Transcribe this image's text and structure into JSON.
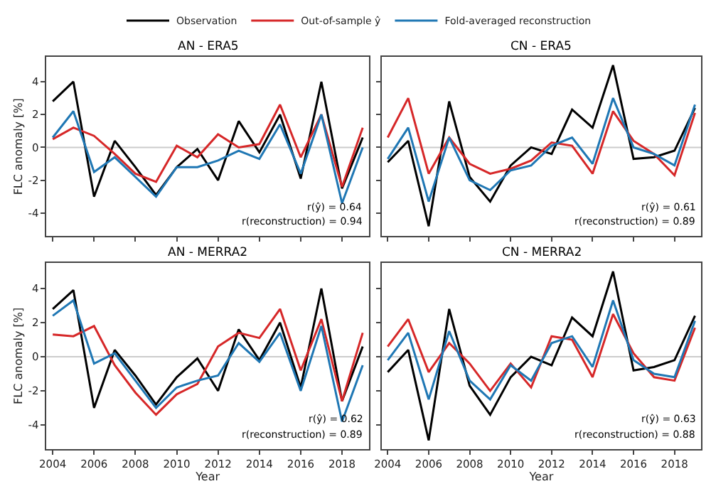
{
  "chart_data": [
    {
      "type": "line",
      "title": "AN - ERA5",
      "ylabel": "FLC anomaly [%]",
      "legend": "top",
      "tick_labels": "y",
      "x": [
        2004,
        2005,
        2006,
        2007,
        2008,
        2009,
        2010,
        2011,
        2012,
        2013,
        2014,
        2015,
        2016,
        2017,
        2018,
        2019
      ],
      "xlim": [
        2003.7,
        2019.3
      ],
      "ylim": [
        -5.4,
        5.5
      ],
      "xticks": [
        2004,
        2006,
        2008,
        2010,
        2012,
        2014,
        2016,
        2018
      ],
      "yticks": [
        -4,
        -2,
        0,
        2,
        4
      ],
      "ref_lines": [
        {
          "axis": "y",
          "value": 0,
          "color": "#cccccc"
        }
      ],
      "annotations": [
        "r(ŷ) = 0.64",
        "r(reconstruction) = 0.94"
      ],
      "series": [
        {
          "name": "Observation",
          "color": "#000000",
          "values": [
            2.8,
            4.0,
            -3.0,
            0.4,
            -1.2,
            -2.9,
            -1.2,
            -0.1,
            -2.0,
            1.6,
            -0.3,
            2.0,
            -1.9,
            4.0,
            -2.5,
            0.6
          ]
        },
        {
          "name": "Out-of-sample ŷ",
          "color": "#d62728",
          "values": [
            0.5,
            1.2,
            0.7,
            -0.4,
            -1.6,
            -2.1,
            0.1,
            -0.6,
            0.8,
            0.0,
            0.2,
            2.6,
            -0.6,
            2.0,
            -2.4,
            1.2
          ]
        },
        {
          "name": "Fold-averaged reconstruction",
          "color": "#1f77b4",
          "values": [
            0.6,
            2.2,
            -1.5,
            -0.6,
            -1.8,
            -3.0,
            -1.2,
            -1.2,
            -0.8,
            -0.2,
            -0.7,
            1.4,
            -1.6,
            2.0,
            -3.4,
            0.0
          ]
        }
      ]
    },
    {
      "type": "line",
      "title": "CN - ERA5",
      "tick_labels": false,
      "x": [
        2004,
        2005,
        2006,
        2007,
        2008,
        2009,
        2010,
        2011,
        2012,
        2013,
        2014,
        2015,
        2016,
        2017,
        2018,
        2019
      ],
      "xlim": [
        2003.7,
        2019.3
      ],
      "ylim": [
        -5.4,
        5.5
      ],
      "xticks": [
        2004,
        2006,
        2008,
        2010,
        2012,
        2014,
        2016,
        2018
      ],
      "yticks": [
        -4,
        -2,
        0,
        2,
        4
      ],
      "ref_lines": [
        {
          "axis": "y",
          "value": 0,
          "color": "#cccccc"
        }
      ],
      "annotations": [
        "r(ŷ) = 0.61",
        "r(reconstruction) = 0.89"
      ],
      "series": [
        {
          "color": "#000000",
          "values": [
            -0.9,
            0.4,
            -4.8,
            2.8,
            -1.8,
            -3.3,
            -1.1,
            0.0,
            -0.4,
            2.3,
            1.2,
            5.0,
            -0.7,
            -0.6,
            -0.2,
            2.4
          ]
        },
        {
          "color": "#d62728",
          "values": [
            0.6,
            3.0,
            -1.6,
            0.6,
            -1.0,
            -1.6,
            -1.3,
            -0.8,
            0.3,
            0.1,
            -1.6,
            2.2,
            0.4,
            -0.4,
            -1.7,
            2.1
          ]
        },
        {
          "color": "#1f77b4",
          "values": [
            -0.7,
            1.2,
            -3.3,
            0.6,
            -2.0,
            -2.6,
            -1.4,
            -1.1,
            0.1,
            0.6,
            -1.0,
            3.0,
            0.0,
            -0.4,
            -1.1,
            2.6
          ]
        }
      ]
    },
    {
      "type": "line",
      "title": "AN - MERRA2",
      "ylabel": "FLC anomaly [%]",
      "xlabel": "Year",
      "x": [
        2004,
        2005,
        2006,
        2007,
        2008,
        2009,
        2010,
        2011,
        2012,
        2013,
        2014,
        2015,
        2016,
        2017,
        2018,
        2019
      ],
      "xlim": [
        2003.7,
        2019.3
      ],
      "ylim": [
        -5.4,
        5.5
      ],
      "xticks": [
        2004,
        2006,
        2008,
        2010,
        2012,
        2014,
        2016,
        2018
      ],
      "yticks": [
        -4,
        -2,
        0,
        2,
        4
      ],
      "ref_lines": [
        {
          "axis": "y",
          "value": 0,
          "color": "#cccccc"
        }
      ],
      "annotations": [
        "r(ŷ) = 0.62",
        "r(reconstruction) = 0.89"
      ],
      "series": [
        {
          "color": "#000000",
          "values": [
            2.8,
            3.9,
            -3.0,
            0.4,
            -1.1,
            -2.8,
            -1.2,
            -0.1,
            -2.0,
            1.6,
            -0.2,
            2.0,
            -1.8,
            4.0,
            -2.6,
            0.6
          ]
        },
        {
          "color": "#d62728",
          "values": [
            1.3,
            1.2,
            1.8,
            -0.5,
            -2.1,
            -3.4,
            -2.2,
            -1.6,
            0.6,
            1.4,
            1.1,
            2.8,
            -0.8,
            2.2,
            -2.6,
            1.4
          ]
        },
        {
          "color": "#1f77b4",
          "values": [
            2.4,
            3.3,
            -0.4,
            0.2,
            -1.4,
            -3.0,
            -1.8,
            -1.4,
            -1.1,
            0.8,
            -0.3,
            1.4,
            -2.0,
            1.8,
            -3.8,
            -0.5
          ]
        }
      ]
    },
    {
      "type": "line",
      "title": "CN - MERRA2",
      "xlabel": "Year",
      "tick_labels": "x",
      "x": [
        2004,
        2005,
        2006,
        2007,
        2008,
        2009,
        2010,
        2011,
        2012,
        2013,
        2014,
        2015,
        2016,
        2017,
        2018,
        2019
      ],
      "xlim": [
        2003.7,
        2019.3
      ],
      "ylim": [
        -5.4,
        5.5
      ],
      "xticks": [
        2004,
        2006,
        2008,
        2010,
        2012,
        2014,
        2016,
        2018
      ],
      "yticks": [
        -4,
        -2,
        0,
        2,
        4
      ],
      "ref_lines": [
        {
          "axis": "y",
          "value": 0,
          "color": "#cccccc"
        }
      ],
      "annotations": [
        "r(ŷ) = 0.63",
        "r(reconstruction) = 0.88"
      ],
      "series": [
        {
          "color": "#000000",
          "values": [
            -0.9,
            0.4,
            -4.9,
            2.8,
            -1.7,
            -3.4,
            -1.2,
            0.0,
            -0.5,
            2.3,
            1.2,
            5.0,
            -0.8,
            -0.6,
            -0.2,
            2.4
          ]
        },
        {
          "color": "#d62728",
          "values": [
            0.6,
            2.2,
            -0.9,
            0.8,
            -0.4,
            -2.0,
            -0.4,
            -1.8,
            1.2,
            1.0,
            -1.2,
            2.5,
            0.2,
            -1.2,
            -1.4,
            1.7
          ]
        },
        {
          "color": "#1f77b4",
          "values": [
            -0.2,
            1.4,
            -2.5,
            1.5,
            -1.4,
            -2.5,
            -0.5,
            -1.4,
            0.8,
            1.2,
            -0.6,
            3.3,
            -0.2,
            -1.0,
            -1.2,
            2.1
          ]
        }
      ]
    }
  ]
}
